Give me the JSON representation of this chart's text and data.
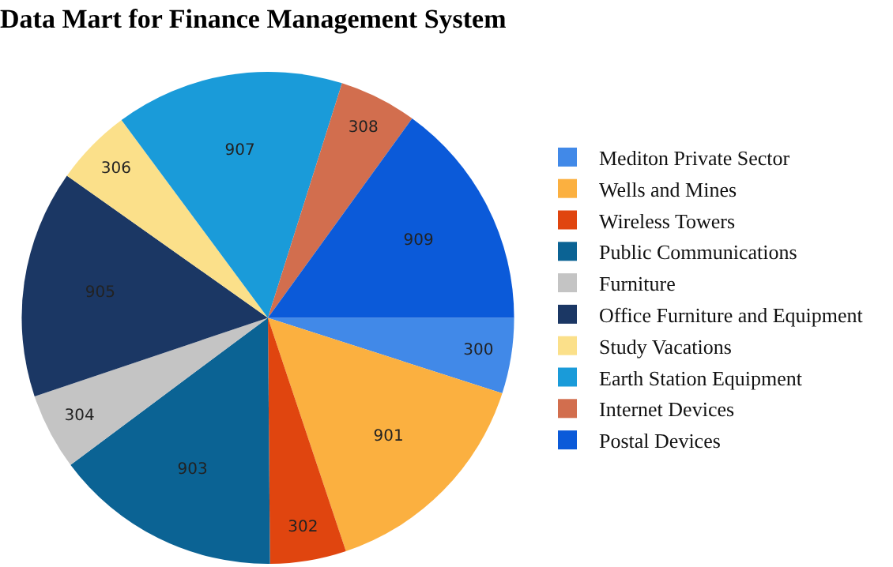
{
  "chart_data": {
    "type": "pie",
    "title": "Data Mart for Finance Management System",
    "categories": [
      "Mediton Private Sector",
      "Wells and Mines",
      "Wireless Towers",
      "Public Communications",
      "Furniture",
      "Office Furniture and Equipment",
      "Study Vacations",
      "Earth Station Equipment",
      "Internet Devices",
      "Postal Devices"
    ],
    "values": [
      300,
      901,
      302,
      903,
      304,
      905,
      306,
      907,
      308,
      909
    ],
    "colors": [
      "#4189e8",
      "#fbb040",
      "#e0450f",
      "#0b6394",
      "#c4c4c4",
      "#1b3764",
      "#fbe08a",
      "#1a9bd9",
      "#d26e4e",
      "#0b5ad9"
    ],
    "data_labels": true,
    "legend": "right"
  }
}
